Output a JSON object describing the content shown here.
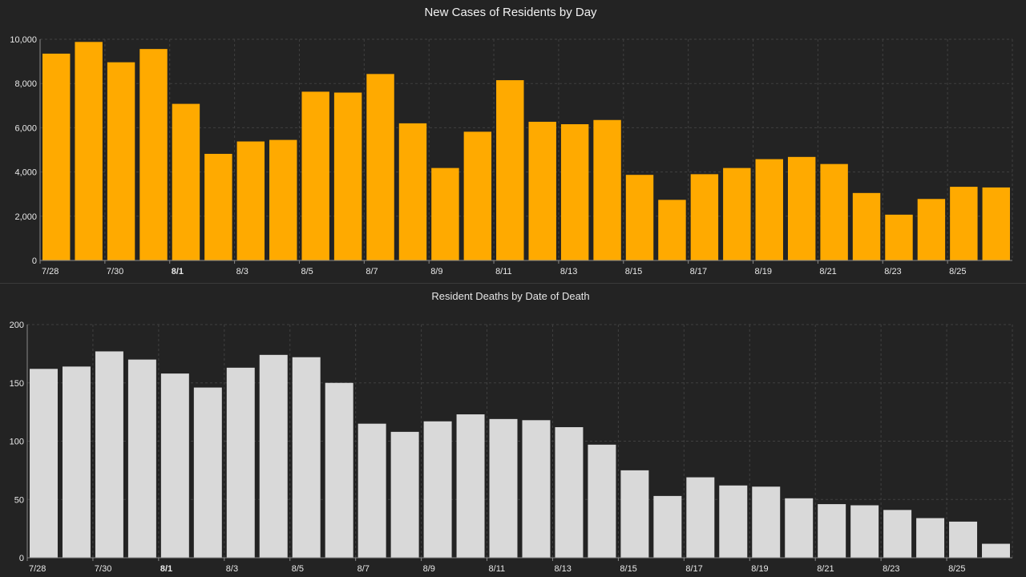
{
  "chart_data": [
    {
      "type": "bar",
      "title": "New Cases of Residents by Day",
      "xlabel": "",
      "ylabel": "",
      "ylim": [
        0,
        10000
      ],
      "yticks": [
        "0",
        "2,000",
        "4,000",
        "6,000",
        "8,000",
        "10,000"
      ],
      "categories": [
        "7/28",
        "7/29",
        "7/30",
        "7/31",
        "8/1",
        "8/2",
        "8/3",
        "8/4",
        "8/5",
        "8/6",
        "8/7",
        "8/8",
        "8/9",
        "8/10",
        "8/11",
        "8/12",
        "8/13",
        "8/14",
        "8/15",
        "8/16",
        "8/17",
        "8/18",
        "8/19",
        "8/20",
        "8/21",
        "8/22",
        "8/23",
        "8/24",
        "8/25",
        "8/26"
      ],
      "xticklabels": [
        "7/28",
        "7/30",
        "8/1",
        "8/3",
        "8/5",
        "8/7",
        "8/9",
        "8/11",
        "8/13",
        "8/15",
        "8/17",
        "8/19",
        "8/21",
        "8/23",
        "8/25"
      ],
      "bold_tick": "8/1",
      "values": [
        9350,
        9880,
        8960,
        9560,
        7080,
        4820,
        5380,
        5450,
        7630,
        7590,
        8430,
        6200,
        4180,
        5820,
        8150,
        6270,
        6160,
        6350,
        3870,
        2740,
        3900,
        4180,
        4580,
        4680,
        4360,
        3050,
        2070,
        2780,
        3330,
        3300
      ],
      "color": "#FFAA00",
      "grid": true
    },
    {
      "type": "bar",
      "title": "Resident Deaths by Date of Death",
      "xlabel": "",
      "ylabel": "",
      "ylim": [
        0,
        200
      ],
      "yticks": [
        "0",
        "50",
        "100",
        "150",
        "200"
      ],
      "categories": [
        "7/28",
        "7/29",
        "7/30",
        "7/31",
        "8/1",
        "8/2",
        "8/3",
        "8/4",
        "8/5",
        "8/6",
        "8/7",
        "8/8",
        "8/9",
        "8/10",
        "8/11",
        "8/12",
        "8/13",
        "8/14",
        "8/15",
        "8/16",
        "8/17",
        "8/18",
        "8/19",
        "8/20",
        "8/21",
        "8/22",
        "8/23",
        "8/24",
        "8/25",
        "8/26"
      ],
      "xticklabels": [
        "7/28",
        "7/30",
        "8/1",
        "8/3",
        "8/5",
        "8/7",
        "8/9",
        "8/11",
        "8/13",
        "8/15",
        "8/17",
        "8/19",
        "8/21",
        "8/23",
        "8/25"
      ],
      "bold_tick": "8/1",
      "values": [
        162,
        164,
        177,
        170,
        158,
        146,
        163,
        174,
        172,
        150,
        115,
        108,
        117,
        123,
        119,
        118,
        112,
        97,
        75,
        53,
        69,
        62,
        61,
        51,
        46,
        45,
        41,
        34,
        31,
        12
      ],
      "color": "#D9D9D9",
      "grid": true
    }
  ],
  "theme": {
    "background": "#232323",
    "grid": "#404040",
    "axis": "#8a8a8a",
    "tick_text": "#e8e8e8",
    "title_text": "#f2f2f2"
  }
}
